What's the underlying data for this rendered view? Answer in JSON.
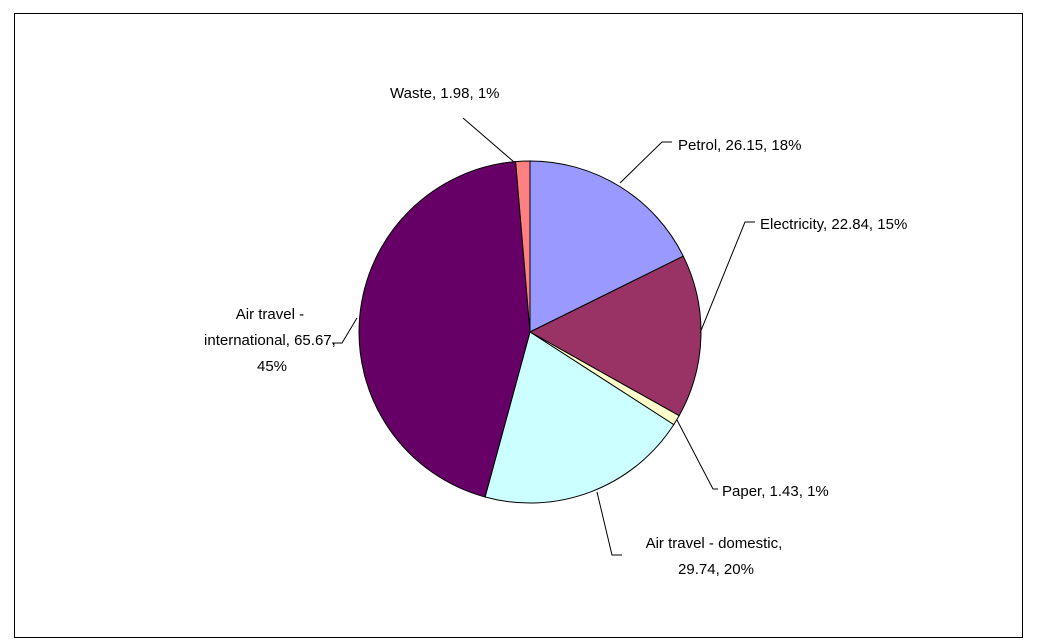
{
  "chart_data": {
    "type": "pie",
    "slices": [
      {
        "name": "Petrol",
        "value": 26.15,
        "percent": "18%",
        "label": "Petrol, 26.15, 18%",
        "color": "#9999FF"
      },
      {
        "name": "Electricity",
        "value": 22.84,
        "percent": "15%",
        "label": "Electricity, 22.84, 15%",
        "color": "#993366"
      },
      {
        "name": "Paper",
        "value": 1.43,
        "percent": "1%",
        "label": "Paper, 1.43, 1%",
        "color": "#FFFFCC"
      },
      {
        "name": "Air travel - domestic",
        "value": 29.74,
        "percent": "20%",
        "label": "Air travel - domestic, 29.74, 20%",
        "color": "#CCFFFF"
      },
      {
        "name": "Air travel - international",
        "value": 65.67,
        "percent": "45%",
        "label": "Air travel - international, 65.67, 45%",
        "color": "#660066"
      },
      {
        "name": "Waste",
        "value": 1.98,
        "percent": "1%",
        "label": "Waste, 1.98, 1%",
        "color": "#FF8080"
      }
    ],
    "start": "12 o'clock",
    "direction": "clockwise",
    "legend": "none"
  }
}
